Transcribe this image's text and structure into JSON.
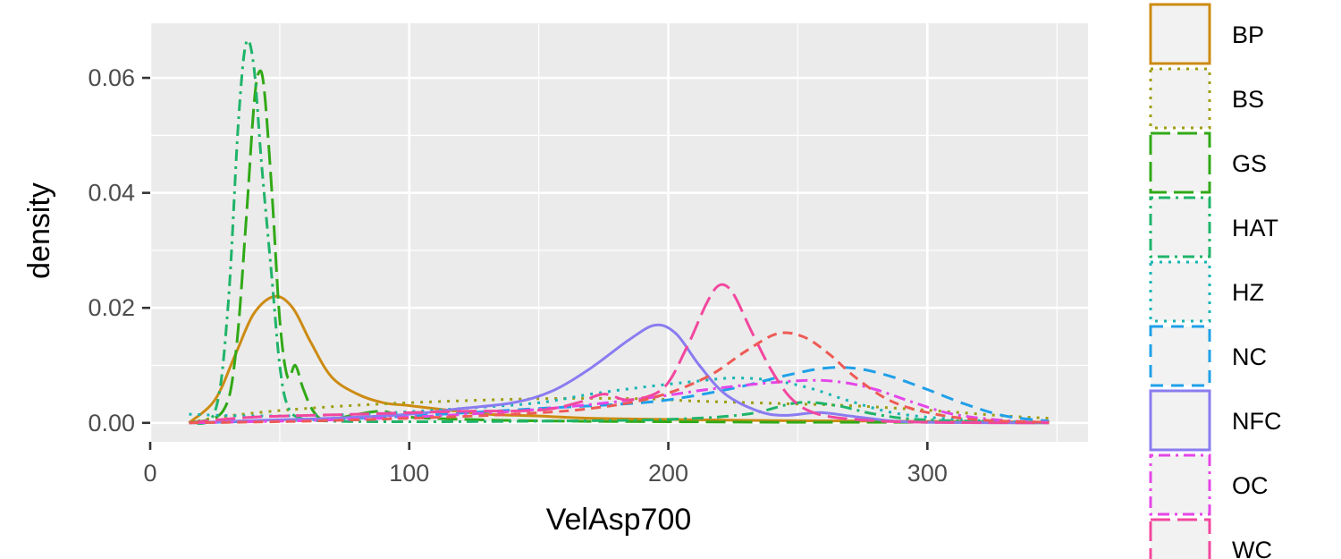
{
  "chart_data": {
    "type": "line",
    "subtype": "density",
    "xlabel": "VelAsp700",
    "ylabel": "density",
    "xlim": [
      0,
      362
    ],
    "ylim": [
      -0.0033,
      0.0695
    ],
    "x_ticks": [
      0,
      100,
      200,
      300
    ],
    "x_tick_labels": [
      "0",
      "100",
      "200",
      "300"
    ],
    "y_ticks": [
      0,
      0.02,
      0.04,
      0.06
    ],
    "y_tick_labels": [
      "0.00",
      "0.02",
      "0.04",
      "0.06"
    ],
    "grid": true,
    "legend_position": "right",
    "x_range": [
      15,
      347
    ],
    "series": [
      {
        "name": "BP",
        "color": "#CD8B12",
        "dash": "solid",
        "points": [
          [
            15,
            0.0
          ],
          [
            25,
            0.004
          ],
          [
            33,
            0.012
          ],
          [
            40,
            0.019
          ],
          [
            48,
            0.022
          ],
          [
            55,
            0.02
          ],
          [
            62,
            0.014
          ],
          [
            70,
            0.008
          ],
          [
            80,
            0.005
          ],
          [
            90,
            0.0035
          ],
          [
            100,
            0.003
          ],
          [
            115,
            0.0022
          ],
          [
            130,
            0.0015
          ],
          [
            150,
            0.0012
          ],
          [
            170,
            0.0008
          ],
          [
            200,
            0.0006
          ],
          [
            240,
            0.0004
          ],
          [
            280,
            0.0003
          ],
          [
            320,
            0.0002
          ],
          [
            347,
            0.0001
          ]
        ]
      },
      {
        "name": "BS",
        "color": "#9E9E12",
        "dash": "dotted",
        "points": [
          [
            15,
            0.0
          ],
          [
            30,
            0.0012
          ],
          [
            60,
            0.0025
          ],
          [
            100,
            0.0035
          ],
          [
            150,
            0.0042
          ],
          [
            190,
            0.0042
          ],
          [
            210,
            0.0038
          ],
          [
            240,
            0.0034
          ],
          [
            270,
            0.003
          ],
          [
            300,
            0.0022
          ],
          [
            330,
            0.0012
          ],
          [
            347,
            0.0008
          ]
        ]
      },
      {
        "name": "GS",
        "color": "#31A917",
        "dash": "longdash",
        "points": [
          [
            15,
            0.0
          ],
          [
            28,
            0.002
          ],
          [
            33,
            0.012
          ],
          [
            37,
            0.035
          ],
          [
            40,
            0.055
          ],
          [
            42,
            0.061
          ],
          [
            44,
            0.058
          ],
          [
            47,
            0.04
          ],
          [
            50,
            0.018
          ],
          [
            53,
            0.008
          ],
          [
            56,
            0.01
          ],
          [
            59,
            0.006
          ],
          [
            63,
            0.002
          ],
          [
            68,
            0.0005
          ],
          [
            80,
            0.0015
          ],
          [
            90,
            0.002
          ],
          [
            100,
            0.001
          ],
          [
            130,
            0.0005
          ],
          [
            160,
            0.0003
          ],
          [
            200,
            0.0002
          ],
          [
            250,
            0.0001
          ],
          [
            300,
            0.0001
          ],
          [
            347,
            0.0
          ]
        ]
      },
      {
        "name": "HAT",
        "color": "#1FB46A",
        "dash": "dotdash",
        "points": [
          [
            15,
            0.0
          ],
          [
            25,
            0.002
          ],
          [
            30,
            0.02
          ],
          [
            34,
            0.052
          ],
          [
            37,
            0.066
          ],
          [
            40,
            0.062
          ],
          [
            43,
            0.045
          ],
          [
            47,
            0.025
          ],
          [
            50,
            0.01
          ],
          [
            53,
            0.003
          ],
          [
            58,
            0.0008
          ],
          [
            70,
            0.0003
          ],
          [
            100,
            0.0002
          ],
          [
            150,
            0.0003
          ],
          [
            200,
            0.0006
          ],
          [
            230,
            0.0015
          ],
          [
            250,
            0.0035
          ],
          [
            265,
            0.003
          ],
          [
            280,
            0.0015
          ],
          [
            300,
            0.0005
          ],
          [
            347,
            0.0001
          ]
        ]
      },
      {
        "name": "HZ",
        "color": "#17B4B4",
        "dash": "dotted",
        "points": [
          [
            15,
            0.0015
          ],
          [
            40,
            0.0012
          ],
          [
            80,
            0.0015
          ],
          [
            120,
            0.0025
          ],
          [
            150,
            0.0035
          ],
          [
            170,
            0.005
          ],
          [
            190,
            0.0062
          ],
          [
            210,
            0.0072
          ],
          [
            225,
            0.0078
          ],
          [
            240,
            0.0074
          ],
          [
            255,
            0.006
          ],
          [
            270,
            0.0038
          ],
          [
            290,
            0.0015
          ],
          [
            320,
            0.0004
          ],
          [
            347,
            0.0001
          ]
        ]
      },
      {
        "name": "NC",
        "color": "#1FA0E8",
        "dash": "dashed",
        "points": [
          [
            15,
            0.0
          ],
          [
            60,
            0.0005
          ],
          [
            100,
            0.0012
          ],
          [
            150,
            0.0025
          ],
          [
            180,
            0.0032
          ],
          [
            200,
            0.004
          ],
          [
            225,
            0.006
          ],
          [
            245,
            0.0082
          ],
          [
            260,
            0.0095
          ],
          [
            272,
            0.0095
          ],
          [
            285,
            0.0082
          ],
          [
            300,
            0.0058
          ],
          [
            315,
            0.0032
          ],
          [
            330,
            0.0012
          ],
          [
            347,
            0.0003
          ]
        ]
      },
      {
        "name": "NFC",
        "color": "#8A7CF0",
        "dash": "solid",
        "points": [
          [
            15,
            0.0
          ],
          [
            40,
            0.0004
          ],
          [
            70,
            0.0008
          ],
          [
            100,
            0.0015
          ],
          [
            120,
            0.0025
          ],
          [
            140,
            0.0035
          ],
          [
            155,
            0.0055
          ],
          [
            170,
            0.0095
          ],
          [
            185,
            0.0145
          ],
          [
            195,
            0.017
          ],
          [
            203,
            0.0155
          ],
          [
            212,
            0.01
          ],
          [
            222,
            0.005
          ],
          [
            235,
            0.002
          ],
          [
            245,
            0.0013
          ],
          [
            258,
            0.0018
          ],
          [
            270,
            0.0012
          ],
          [
            285,
            0.0004
          ],
          [
            300,
            0.0001
          ],
          [
            347,
            0.0
          ]
        ]
      },
      {
        "name": "OC",
        "color": "#E546E8",
        "dash": "dotdash",
        "points": [
          [
            15,
            0.0
          ],
          [
            60,
            0.0004
          ],
          [
            100,
            0.001
          ],
          [
            140,
            0.002
          ],
          [
            170,
            0.0032
          ],
          [
            195,
            0.0045
          ],
          [
            215,
            0.0058
          ],
          [
            235,
            0.0068
          ],
          [
            255,
            0.0074
          ],
          [
            268,
            0.007
          ],
          [
            280,
            0.0058
          ],
          [
            295,
            0.0035
          ],
          [
            310,
            0.0015
          ],
          [
            330,
            0.0004
          ],
          [
            347,
            0.0001
          ]
        ]
      },
      {
        "name": "WC",
        "color": "#F2479E",
        "dash": "longdash",
        "points": [
          [
            15,
            0.0
          ],
          [
            40,
            0.001
          ],
          [
            80,
            0.0015
          ],
          [
            120,
            0.002
          ],
          [
            150,
            0.0022
          ],
          [
            165,
            0.0035
          ],
          [
            175,
            0.005
          ],
          [
            185,
            0.004
          ],
          [
            198,
            0.006
          ],
          [
            207,
            0.013
          ],
          [
            215,
            0.021
          ],
          [
            220,
            0.024
          ],
          [
            225,
            0.0225
          ],
          [
            232,
            0.016
          ],
          [
            240,
            0.009
          ],
          [
            248,
            0.004
          ],
          [
            258,
            0.0015
          ],
          [
            275,
            0.0005
          ],
          [
            300,
            0.0001
          ],
          [
            347,
            0.0
          ]
        ]
      },
      {
        "name": "",
        "color": "#EE5A55",
        "dash": "dashed2",
        "points": [
          [
            15,
            0.0
          ],
          [
            60,
            0.0003
          ],
          [
            100,
            0.0008
          ],
          [
            140,
            0.0015
          ],
          [
            170,
            0.0025
          ],
          [
            195,
            0.0045
          ],
          [
            215,
            0.008
          ],
          [
            230,
            0.0125
          ],
          [
            242,
            0.0155
          ],
          [
            252,
            0.015
          ],
          [
            262,
            0.012
          ],
          [
            272,
            0.008
          ],
          [
            285,
            0.004
          ],
          [
            300,
            0.0018
          ],
          [
            320,
            0.0005
          ],
          [
            347,
            0.0001
          ]
        ]
      }
    ]
  }
}
